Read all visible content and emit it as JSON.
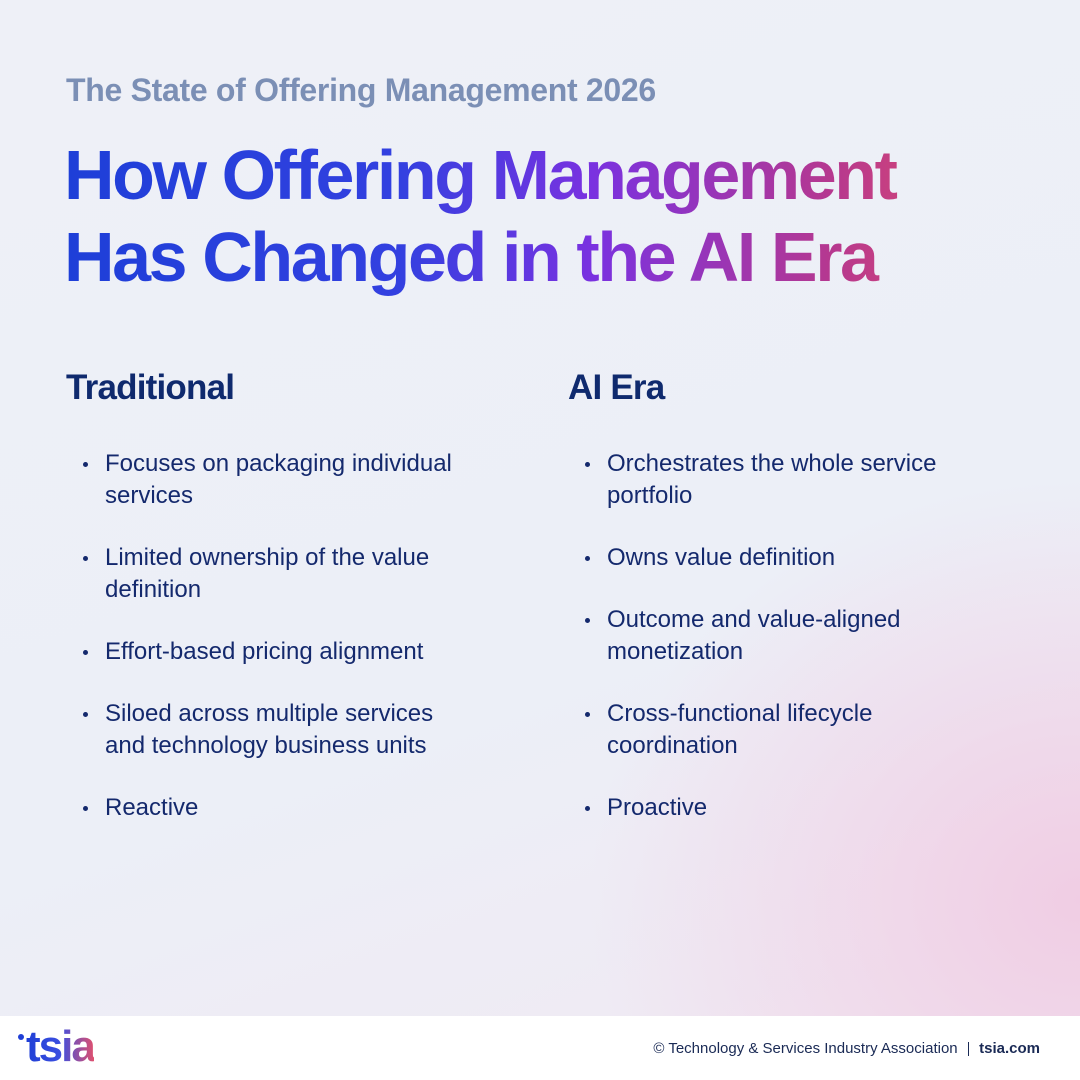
{
  "header": {
    "kicker": "The State of Offering Management 2026",
    "title_lines": [
      "How Offering Management",
      "Has Changed in the AI Era"
    ]
  },
  "columns": [
    {
      "heading": "Traditional",
      "items": [
        "Focuses on packaging individual services",
        "Limited ownership of the value definition",
        "Effort-based pricing alignment",
        "Siloed across multiple services and technology business units",
        "Reactive"
      ]
    },
    {
      "heading": "AI Era",
      "items": [
        "Orchestrates the whole service portfolio",
        "Owns value definition",
        "Outcome and value-aligned monetization",
        "Cross-functional lifecycle coordination",
        "Proactive"
      ]
    }
  ],
  "footer": {
    "logo": "tsia",
    "copyright": "© Technology & Services Industry Association",
    "site": "tsia.com"
  }
}
